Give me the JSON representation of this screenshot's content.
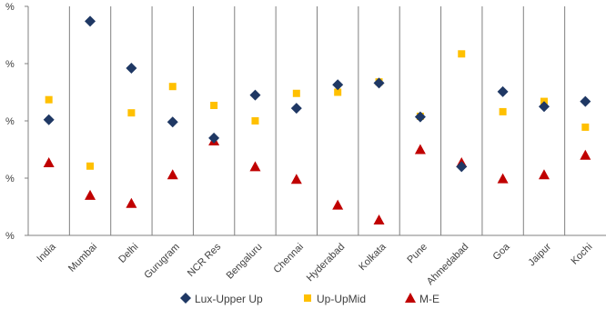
{
  "chart_data": {
    "type": "scatter",
    "categories": [
      "India",
      "Mumbai",
      "Delhi",
      "Gurugram",
      "NCR Res",
      "Bengaluru",
      "Chennai",
      "Hyderabad",
      "Kolkata",
      "Pune",
      "Ahmedabad",
      "Goa",
      "Jaipur",
      "Kochi"
    ],
    "y_tick_labels": [
      "%",
      "%",
      "%",
      "%",
      "%"
    ],
    "ylim": [
      0,
      4
    ],
    "grid": "vertical separators between categories",
    "legend_position": "bottom",
    "series": [
      {
        "name": "Lux-Upper Up",
        "marker": "diamond",
        "color": "#1f3864",
        "values": [
          2.02,
          3.74,
          2.92,
          1.98,
          1.7,
          2.45,
          2.22,
          2.63,
          2.66,
          2.07,
          1.2,
          2.51,
          2.25,
          2.34
        ]
      },
      {
        "name": "Up-UpMid",
        "marker": "square",
        "color": "#ffc000",
        "values": [
          2.37,
          1.21,
          2.14,
          2.6,
          2.27,
          2.0,
          2.48,
          2.5,
          2.68,
          2.08,
          3.17,
          2.16,
          2.34,
          1.89
        ]
      },
      {
        "name": "M-E",
        "marker": "triangle",
        "color": "#c00000",
        "values": [
          1.27,
          0.7,
          0.56,
          1.06,
          1.65,
          1.2,
          0.98,
          0.53,
          0.27,
          1.5,
          1.27,
          0.99,
          1.06,
          1.4
        ]
      }
    ]
  }
}
